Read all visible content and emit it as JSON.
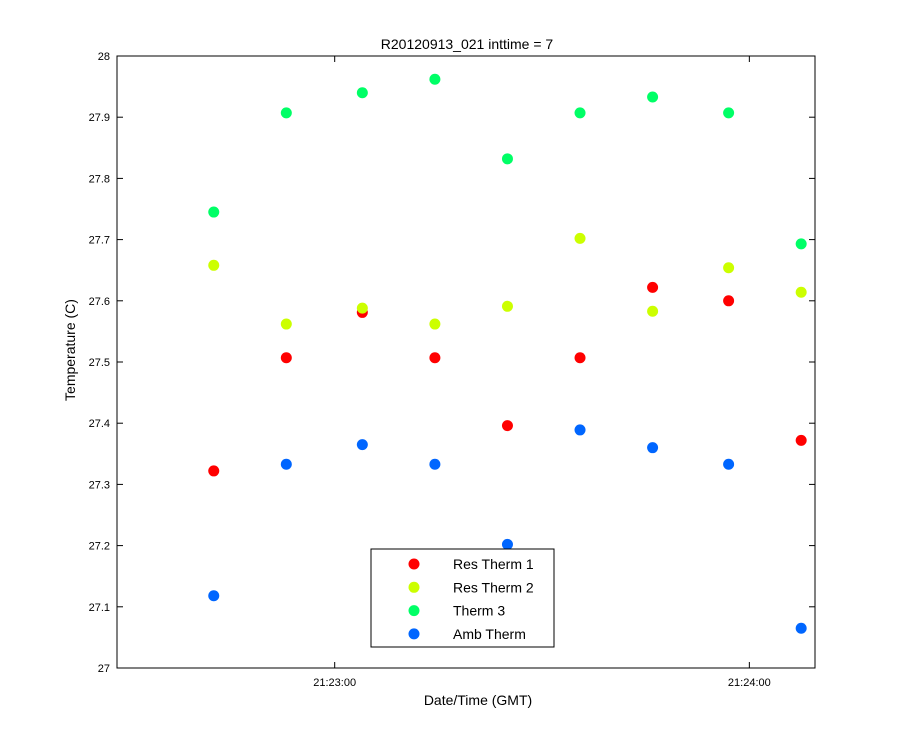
{
  "chart_data": {
    "type": "scatter",
    "title": "R20120913_021 inttime = 7",
    "xlabel": "Date/Time (GMT)",
    "ylabel": "Temperature (C)",
    "xlim": [
      "21:22:28.5",
      "21:24:09.5"
    ],
    "ylim": [
      27,
      28
    ],
    "xticks": [
      {
        "label": "21:23:00",
        "value": "21:23:00"
      },
      {
        "label": "21:24:00",
        "value": "21:24:00"
      }
    ],
    "yticks": [
      "27",
      "27.1",
      "27.2",
      "27.3",
      "27.4",
      "27.5",
      "27.6",
      "27.7",
      "27.8",
      "27.9",
      "28"
    ],
    "x": [
      "21:22:42.5",
      "21:22:53",
      "21:23:04",
      "21:23:14.5",
      "21:23:25",
      "21:23:35.5",
      "21:23:46",
      "21:23:57",
      "21:24:07.5"
    ],
    "grid": false,
    "legend_position": "bottom-center",
    "series": [
      {
        "name": "Res Therm 1",
        "color": "#ff0000",
        "points": [
          {
            "x": "21:22:42.5",
            "y": 27.322
          },
          {
            "x": "21:22:53",
            "y": 27.507
          },
          {
            "x": "21:23:04",
            "y": 27.581
          },
          {
            "x": "21:23:14.5",
            "y": 27.507
          },
          {
            "x": "21:23:25",
            "y": 27.396
          },
          {
            "x": "21:23:35.5",
            "y": 27.507
          },
          {
            "x": "21:23:46",
            "y": 27.622
          },
          {
            "x": "21:23:57",
            "y": 27.6
          },
          {
            "x": "21:24:07.5",
            "y": 27.372
          }
        ]
      },
      {
        "name": "Res Therm 2",
        "color": "#ccff00",
        "points": [
          {
            "x": "21:22:42.5",
            "y": 27.658
          },
          {
            "x": "21:22:53",
            "y": 27.562
          },
          {
            "x": "21:23:04",
            "y": 27.588
          },
          {
            "x": "21:23:14.5",
            "y": 27.562
          },
          {
            "x": "21:23:25",
            "y": 27.591
          },
          {
            "x": "21:23:35.5",
            "y": 27.702
          },
          {
            "x": "21:23:46",
            "y": 27.583
          },
          {
            "x": "21:23:57",
            "y": 27.654
          },
          {
            "x": "21:24:07.5",
            "y": 27.614
          }
        ]
      },
      {
        "name": "Therm 3",
        "color": "#00ff66",
        "points": [
          {
            "x": "21:22:42.5",
            "y": 27.745
          },
          {
            "x": "21:22:53",
            "y": 27.907
          },
          {
            "x": "21:23:04",
            "y": 27.94
          },
          {
            "x": "21:23:14.5",
            "y": 27.962
          },
          {
            "x": "21:23:25",
            "y": 27.832
          },
          {
            "x": "21:23:35.5",
            "y": 27.907
          },
          {
            "x": "21:23:46",
            "y": 27.933
          },
          {
            "x": "21:23:57",
            "y": 27.907
          },
          {
            "x": "21:24:07.5",
            "y": 27.693
          }
        ]
      },
      {
        "name": "Amb Therm",
        "color": "#0066ff",
        "points": [
          {
            "x": "21:22:42.5",
            "y": 27.118
          },
          {
            "x": "21:22:53",
            "y": 27.333
          },
          {
            "x": "21:23:04",
            "y": 27.365
          },
          {
            "x": "21:23:14.5",
            "y": 27.333
          },
          {
            "x": "21:23:25",
            "y": 27.202
          },
          {
            "x": "21:23:35.5",
            "y": 27.389
          },
          {
            "x": "21:23:46",
            "y": 27.36
          },
          {
            "x": "21:23:57",
            "y": 27.333
          },
          {
            "x": "21:24:07.5",
            "y": 27.065
          }
        ]
      }
    ]
  }
}
